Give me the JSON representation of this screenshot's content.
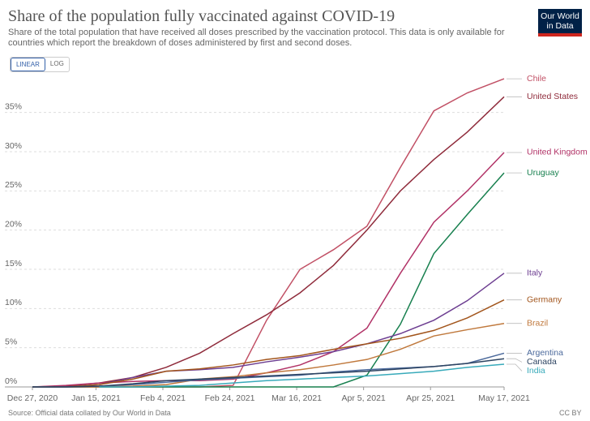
{
  "chart_data": {
    "type": "line",
    "title": "Share of the population fully vaccinated against COVID-19",
    "subtitle": "Share of the total population that have received all doses prescribed by the vaccination protocol. This data is only available for countries which report the breakdown of doses administered by first and second doses.",
    "logo": "Our World in Data",
    "scale_options": [
      "LINEAR",
      "LOG"
    ],
    "log_scale": false,
    "grid": true,
    "source": "Source: Official data collated by Our World in Data",
    "license": "CC BY",
    "x": [
      "2020-12-27",
      "2021-01-06",
      "2021-01-16",
      "2021-01-26",
      "2021-02-05",
      "2021-02-15",
      "2021-02-25",
      "2021-03-07",
      "2021-03-17",
      "2021-03-27",
      "2021-04-06",
      "2021-04-16",
      "2021-04-26",
      "2021-05-06",
      "2021-05-17"
    ],
    "xlim": [
      "2020-12-27",
      "2021-05-17"
    ],
    "xticks": [
      {
        "value": "2020-12-27",
        "label": "Dec 27, 2020"
      },
      {
        "value": "2021-01-15",
        "label": "Jan 15, 2021"
      },
      {
        "value": "2021-02-04",
        "label": "Feb 4, 2021"
      },
      {
        "value": "2021-02-24",
        "label": "Feb 24, 2021"
      },
      {
        "value": "2021-03-16",
        "label": "Mar 16, 2021"
      },
      {
        "value": "2021-04-05",
        "label": "Apr 5, 2021"
      },
      {
        "value": "2021-04-25",
        "label": "Apr 25, 2021"
      },
      {
        "value": "2021-05-17",
        "label": "May 17, 2021"
      }
    ],
    "ylim": [
      0,
      39
    ],
    "yticks": [
      {
        "value": 0,
        "label": "0%"
      },
      {
        "value": 5,
        "label": "5%"
      },
      {
        "value": 10,
        "label": "10%"
      },
      {
        "value": 15,
        "label": "15%"
      },
      {
        "value": 20,
        "label": "20%"
      },
      {
        "value": 25,
        "label": "25%"
      },
      {
        "value": 30,
        "label": "30%"
      },
      {
        "value": 35,
        "label": "35%"
      }
    ],
    "series": [
      {
        "name": "Chile",
        "color": "#c15065",
        "values": [
          0,
          0,
          0,
          0,
          0,
          0,
          0.2,
          8.5,
          15,
          17.5,
          20.5,
          28,
          35.2,
          37.5,
          39.3
        ]
      },
      {
        "name": "United States",
        "color": "#8f2b3b",
        "values": [
          0,
          0.1,
          0.5,
          1.2,
          2.5,
          4.3,
          6.8,
          9.2,
          12,
          15.5,
          20,
          25,
          29,
          32.5,
          37
        ]
      },
      {
        "name": "United Kingdom",
        "color": "#b13266",
        "values": [
          0,
          0.2,
          0.5,
          0.7,
          0.8,
          0.8,
          1,
          1.8,
          2.8,
          4.5,
          7.5,
          14.5,
          21,
          25,
          29.9
        ]
      },
      {
        "name": "Uruguay",
        "color": "#18804f",
        "values": [
          0,
          0,
          0,
          0,
          0,
          0,
          0,
          0,
          0,
          0,
          1.5,
          8,
          17,
          22,
          27.3
        ]
      },
      {
        "name": "Italy",
        "color": "#6d3e91",
        "values": [
          0,
          0,
          0.3,
          1.2,
          2,
          2.2,
          2.5,
          3.2,
          3.8,
          4.5,
          5.5,
          6.8,
          8.5,
          11,
          14.5
        ]
      },
      {
        "name": "Germany",
        "color": "#a2551c",
        "values": [
          0,
          0,
          0.3,
          1,
          2,
          2.3,
          2.8,
          3.5,
          4,
          4.8,
          5.5,
          6.2,
          7.2,
          8.8,
          11.1
        ]
      },
      {
        "name": "Brazil",
        "color": "#c0793d",
        "values": [
          0,
          0,
          0,
          0.1,
          0.3,
          1,
          1.3,
          1.8,
          2.2,
          2.8,
          3.5,
          4.8,
          6.5,
          7.3,
          8.1
        ]
      },
      {
        "name": "Argentina",
        "color": "#4c6a9c",
        "values": [
          0,
          0,
          0.1,
          0.3,
          0.6,
          0.9,
          1.1,
          1.3,
          1.5,
          1.9,
          2.2,
          2.4,
          2.6,
          3,
          4.3
        ]
      },
      {
        "name": "Canada",
        "color": "#2d4462",
        "values": [
          0,
          0,
          0.1,
          0.4,
          0.8,
          1,
          1.2,
          1.4,
          1.6,
          1.8,
          2,
          2.3,
          2.6,
          3,
          3.6
        ]
      },
      {
        "name": "India",
        "color": "#38aaba",
        "values": [
          null,
          null,
          0,
          0,
          0.1,
          0.2,
          0.5,
          0.8,
          1,
          1.2,
          1.4,
          1.7,
          2,
          2.5,
          2.9
        ]
      }
    ]
  }
}
